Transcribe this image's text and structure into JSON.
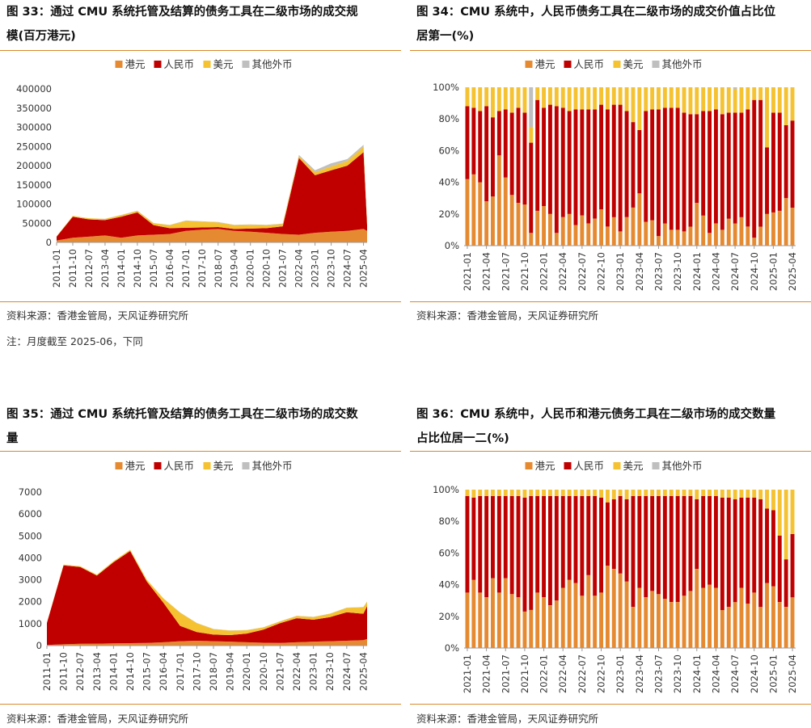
{
  "colors": {
    "hkd": "#e68a32",
    "cny": "#c00000",
    "usd": "#f5c232",
    "other": "#bfbfbf",
    "accent": "#d98a2a"
  },
  "legend": [
    "港元",
    "人民币",
    "美元",
    "其他外币"
  ],
  "charts": [
    {
      "title_line1": "图 33：通过 CMU 系统托管及结算的债务工具在二级市场的成交规",
      "title_line2": "模(百万港元)",
      "source": "资料来源：香港金管局，天风证券研究所",
      "note": "注：月度截至 2025-06，下同"
    },
    {
      "title_line1": "图 34：CMU 系统中，人民币债务工具在二级市场的成交价值占比位",
      "title_line2": "居第一(%)",
      "source": "资料来源：香港金管局，天风证券研究所"
    },
    {
      "title_line1": "图 35：通过 CMU 系统托管及结算的债务工具在二级市场的成交数",
      "title_line2": "量",
      "source": "资料来源：香港金管局，天风证券研究所"
    },
    {
      "title_line1": "图 36：CMU 系统中，人民币和港元债务工具在二级市场的成交数量",
      "title_line2": "占比位居一二(%)",
      "source": "资料来源：香港金管局，天风证券研究所"
    }
  ],
  "chart_data": [
    {
      "type": "area",
      "stacked": true,
      "legend_position": "top",
      "x_ticks": [
        "2011-01",
        "2011-10",
        "2012-07",
        "2013-04",
        "2014-01",
        "2014-10",
        "2015-07",
        "2016-04",
        "2017-01",
        "2017-10",
        "2018-07",
        "2019-04",
        "2020-01",
        "2020-10",
        "2021-07",
        "2022-04",
        "2023-01",
        "2023-10",
        "2024-07",
        "2025-04"
      ],
      "ylim": [
        0,
        400000
      ],
      "y_ticks": [
        "0",
        "50000",
        "100000",
        "150000",
        "200000",
        "250000",
        "300000",
        "350000",
        "400000"
      ],
      "x_keypoints_months": [
        "2011-01",
        "2011-10",
        "2012-07",
        "2013-04",
        "2014-01",
        "2014-10",
        "2015-07",
        "2016-04",
        "2017-01",
        "2017-10",
        "2018-07",
        "2019-04",
        "2020-01",
        "2020-10",
        "2021-07",
        "2022-04",
        "2023-01",
        "2023-10",
        "2024-07",
        "2025-04",
        "2025-06"
      ],
      "series": [
        {
          "name": "港元",
          "values": [
            5000,
            12000,
            15000,
            18000,
            12000,
            18000,
            20000,
            22000,
            30000,
            33000,
            35000,
            30000,
            28000,
            25000,
            22000,
            20000,
            25000,
            28000,
            30000,
            35000,
            30000
          ]
        },
        {
          "name": "人民币",
          "values": [
            10000,
            55000,
            45000,
            40000,
            55000,
            60000,
            25000,
            15000,
            8000,
            6000,
            5000,
            5000,
            8000,
            12000,
            20000,
            200000,
            150000,
            160000,
            170000,
            200000,
            15000
          ]
        },
        {
          "name": "美元",
          "values": [
            1000,
            2000,
            3000,
            3000,
            4000,
            4000,
            5000,
            8000,
            18000,
            15000,
            12000,
            10000,
            10000,
            8000,
            6000,
            5000,
            8000,
            10000,
            12000,
            15000,
            5000
          ]
        },
        {
          "name": "其他外币",
          "values": [
            0,
            0,
            0,
            500,
            500,
            500,
            500,
            500,
            1000,
            1000,
            1000,
            1000,
            1000,
            1000,
            1000,
            3000,
            5000,
            8000,
            5000,
            4000,
            2000
          ]
        }
      ]
    },
    {
      "type": "bar",
      "stacked": true,
      "percent": true,
      "legend_position": "top",
      "x_ticks": [
        "2021-01",
        "2021-04",
        "2021-07",
        "2021-10",
        "2022-01",
        "2022-04",
        "2022-07",
        "2022-10",
        "2023-01",
        "2023-04",
        "2023-07",
        "2023-10",
        "2024-01",
        "2024-04",
        "2024-07",
        "2024-10",
        "2025-01",
        "2025-04"
      ],
      "ylim": [
        0,
        100
      ],
      "y_ticks": [
        "0%",
        "20%",
        "40%",
        "60%",
        "80%",
        "100%"
      ],
      "start_month": "2021-01",
      "series": [
        {
          "name": "港元",
          "values": [
            42,
            45,
            40,
            28,
            31,
            57,
            43,
            32,
            27,
            26,
            8,
            22,
            25,
            20,
            8,
            18,
            20,
            13,
            19,
            14,
            17,
            23,
            12,
            18,
            9,
            18,
            24,
            33,
            15,
            16,
            6,
            14,
            10,
            10,
            9,
            12,
            27,
            19,
            8,
            14,
            10,
            17,
            14,
            18,
            12,
            5,
            12,
            20,
            21,
            22,
            30,
            24
          ]
        },
        {
          "name": "人民币",
          "values": [
            46,
            42,
            45,
            60,
            50,
            28,
            43,
            52,
            60,
            58,
            57,
            70,
            62,
            69,
            80,
            69,
            65,
            73,
            67,
            72,
            69,
            66,
            74,
            71,
            80,
            67,
            54,
            40,
            70,
            70,
            80,
            73,
            77,
            77,
            75,
            71,
            56,
            66,
            77,
            72,
            73,
            67,
            70,
            66,
            74,
            87,
            80,
            42,
            63,
            62,
            46,
            55
          ]
        },
        {
          "name": "美元",
          "values": [
            12,
            13,
            15,
            12,
            19,
            15,
            14,
            16,
            13,
            16,
            10,
            8,
            13,
            11,
            12,
            13,
            15,
            14,
            14,
            14,
            14,
            11,
            14,
            11,
            11,
            15,
            22,
            27,
            15,
            14,
            14,
            13,
            13,
            13,
            16,
            17,
            17,
            15,
            15,
            14,
            17,
            16,
            15,
            16,
            14,
            8,
            8,
            38,
            16,
            16,
            24,
            21
          ]
        },
        {
          "name": "其他外币",
          "values": [
            0,
            0,
            0,
            0,
            0,
            0,
            0,
            0,
            0,
            0,
            25,
            0,
            0,
            0,
            0,
            0,
            0,
            0,
            0,
            0,
            0,
            0,
            0,
            0,
            0,
            0,
            0,
            0,
            0,
            0,
            0,
            0,
            0,
            0,
            0,
            0,
            0,
            0,
            0,
            0,
            0,
            0,
            1,
            0,
            0,
            0,
            0,
            0,
            0,
            0,
            0,
            0
          ]
        }
      ]
    },
    {
      "type": "area",
      "stacked": true,
      "legend_position": "top",
      "x_ticks": [
        "2011-01",
        "2011-10",
        "2012-07",
        "2013-04",
        "2014-01",
        "2014-10",
        "2015-07",
        "2016-04",
        "2017-01",
        "2017-10",
        "2018-07",
        "2019-04",
        "2020-01",
        "2020-10",
        "2021-07",
        "2022-04",
        "2023-01",
        "2023-10",
        "2024-07",
        "2025-04"
      ],
      "ylim": [
        0,
        7000
      ],
      "y_ticks": [
        "0",
        "1000",
        "2000",
        "3000",
        "4000",
        "5000",
        "6000",
        "7000"
      ],
      "x_keypoints_months": [
        "2011-01",
        "2011-10",
        "2012-07",
        "2013-04",
        "2014-01",
        "2014-10",
        "2015-07",
        "2016-04",
        "2017-01",
        "2017-10",
        "2018-07",
        "2019-04",
        "2020-01",
        "2020-10",
        "2021-07",
        "2022-04",
        "2023-01",
        "2023-10",
        "2024-07",
        "2025-04",
        "2025-06"
      ],
      "series": [
        {
          "name": "港元",
          "values": [
            30,
            60,
            80,
            90,
            100,
            110,
            120,
            150,
            200,
            220,
            200,
            180,
            150,
            130,
            120,
            150,
            180,
            200,
            220,
            250,
            300
          ]
        },
        {
          "name": "人民币",
          "values": [
            1000,
            3600,
            3500,
            3100,
            3700,
            4200,
            2800,
            1800,
            700,
            400,
            300,
            300,
            400,
            600,
            900,
            1100,
            1000,
            1100,
            1300,
            1200,
            1500
          ]
        },
        {
          "name": "美元",
          "values": [
            20,
            30,
            40,
            40,
            50,
            60,
            80,
            200,
            600,
            400,
            250,
            200,
            150,
            100,
            80,
            100,
            120,
            150,
            200,
            300,
            200
          ]
        },
        {
          "name": "其他外币",
          "values": [
            0,
            0,
            0,
            0,
            0,
            0,
            0,
            0,
            10,
            10,
            10,
            10,
            10,
            10,
            10,
            10,
            10,
            10,
            10,
            10,
            10
          ]
        }
      ]
    },
    {
      "type": "bar",
      "stacked": true,
      "percent": true,
      "legend_position": "top",
      "x_ticks": [
        "2021-01",
        "2021-04",
        "2021-07",
        "2021-10",
        "2022-01",
        "2022-04",
        "2022-07",
        "2022-10",
        "2023-01",
        "2023-04",
        "2023-07",
        "2023-10",
        "2024-01",
        "2024-04",
        "2024-07",
        "2024-10",
        "2025-01",
        "2025-04"
      ],
      "ylim": [
        0,
        100
      ],
      "y_ticks": [
        "0%",
        "20%",
        "40%",
        "60%",
        "80%",
        "100%"
      ],
      "start_month": "2021-01",
      "series": [
        {
          "name": "港元",
          "values": [
            35,
            43,
            35,
            32,
            44,
            35,
            44,
            34,
            32,
            23,
            24,
            35,
            32,
            27,
            30,
            38,
            43,
            41,
            33,
            46,
            33,
            35,
            52,
            50,
            47,
            42,
            26,
            38,
            32,
            36,
            34,
            31,
            29,
            29,
            33,
            36,
            50,
            38,
            40,
            38,
            24,
            26,
            29,
            38,
            28,
            35,
            26,
            41,
            39,
            29,
            26,
            32
          ]
        },
        {
          "name": "人民币",
          "values": [
            61,
            52,
            61,
            64,
            52,
            61,
            52,
            62,
            64,
            72,
            72,
            61,
            64,
            69,
            66,
            58,
            53,
            55,
            63,
            50,
            63,
            60,
            40,
            44,
            49,
            52,
            70,
            58,
            64,
            60,
            62,
            65,
            67,
            67,
            63,
            60,
            44,
            58,
            56,
            58,
            71,
            69,
            65,
            57,
            67,
            60,
            68,
            47,
            48,
            42,
            30,
            40
          ]
        },
        {
          "name": "美元",
          "values": [
            4,
            5,
            4,
            4,
            4,
            4,
            4,
            4,
            4,
            5,
            4,
            4,
            4,
            4,
            4,
            4,
            4,
            4,
            4,
            4,
            4,
            5,
            8,
            6,
            4,
            6,
            4,
            4,
            4,
            4,
            4,
            4,
            4,
            4,
            4,
            4,
            6,
            4,
            4,
            4,
            5,
            5,
            6,
            5,
            5,
            5,
            6,
            12,
            13,
            29,
            44,
            28
          ]
        },
        {
          "name": "其他外币",
          "values": [
            0,
            0,
            0,
            0,
            0,
            0,
            0,
            0,
            0,
            0,
            0,
            0,
            0,
            0,
            0,
            0,
            0,
            0,
            0,
            0,
            0,
            0,
            0,
            0,
            0,
            0,
            0,
            0,
            0,
            0,
            0,
            0,
            0,
            0,
            0,
            0,
            0,
            0,
            0,
            0,
            0,
            0,
            0,
            0,
            0,
            0,
            0,
            0,
            0,
            0,
            0,
            0
          ]
        }
      ]
    }
  ]
}
